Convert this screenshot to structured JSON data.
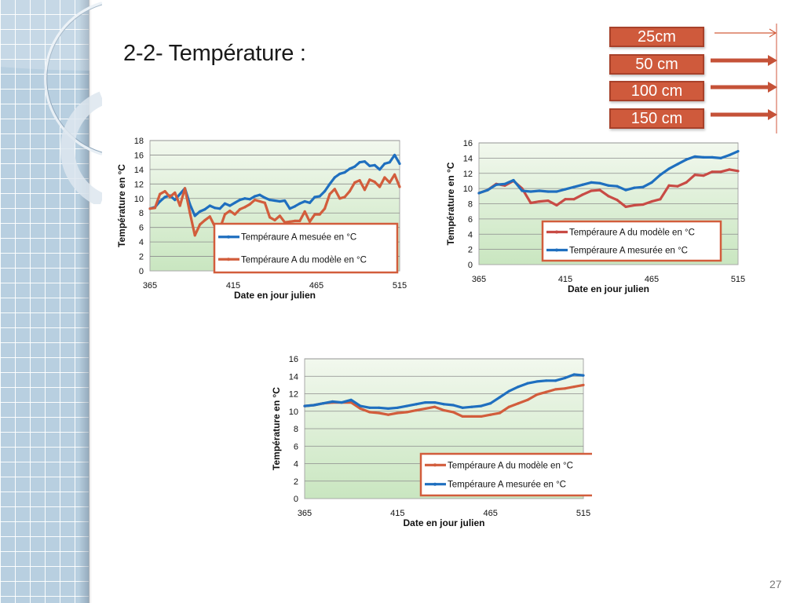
{
  "slide": {
    "title": "2-2- Température :",
    "page_number": "27",
    "accent_color": "#cf5a3c",
    "sidebar_color": "#b8cfe0"
  },
  "depth_legend": {
    "items": [
      {
        "label": "25cm",
        "arrow": "thin"
      },
      {
        "label": "50 cm",
        "arrow": "thick"
      },
      {
        "label": "100 cm",
        "arrow": "thick"
      },
      {
        "label": "150 cm",
        "arrow": "thick"
      }
    ]
  },
  "chart_data": [
    {
      "type": "line",
      "title": "",
      "xlabel": "Date en jour julien",
      "ylabel": "Température en °C",
      "xlim": [
        365,
        515
      ],
      "ylim": [
        0,
        18
      ],
      "x_ticks": [
        "365",
        "415",
        "465",
        "515"
      ],
      "y_ticks": [
        "0",
        "2",
        "4",
        "6",
        "8",
        "10",
        "12",
        "14",
        "16",
        "18"
      ],
      "grid": true,
      "legend_position": "bottom-right",
      "series": [
        {
          "name": "Tempéraure A mesuée  en °C",
          "color": "#1f6fbf",
          "x": [
            365,
            368,
            371,
            374,
            377,
            380,
            383,
            386,
            389,
            392,
            395,
            398,
            401,
            404,
            407,
            410,
            413,
            416,
            419,
            422,
            425,
            428,
            431,
            434,
            437,
            440,
            443,
            446,
            449,
            452,
            455,
            458,
            461,
            464,
            467,
            470,
            473,
            476,
            479,
            482,
            485,
            488,
            491,
            494,
            497,
            500,
            503,
            506,
            509,
            512,
            515
          ],
          "values": [
            8.6,
            8.8,
            9.6,
            10.2,
            10.4,
            9.8,
            10.6,
            11.4,
            9.2,
            7.6,
            8.2,
            8.5,
            9.0,
            8.7,
            8.6,
            9.3,
            9.0,
            9.4,
            9.8,
            10.0,
            9.9,
            10.3,
            10.5,
            10.1,
            9.8,
            9.7,
            9.6,
            9.7,
            8.6,
            8.9,
            9.3,
            9.6,
            9.4,
            10.2,
            10.3,
            11.0,
            12.0,
            12.9,
            13.4,
            13.6,
            14.1,
            14.4,
            15.0,
            15.1,
            14.5,
            14.6,
            14.0,
            14.8,
            15.0,
            16.0,
            14.8
          ]
        },
        {
          "name": "Tempéraure A du modèle  en °C",
          "color": "#d25d3c",
          "x": [
            365,
            368,
            371,
            374,
            377,
            380,
            383,
            386,
            389,
            392,
            395,
            398,
            401,
            404,
            407,
            410,
            413,
            416,
            419,
            422,
            425,
            428,
            431,
            434,
            437,
            440,
            443,
            446,
            449,
            452,
            455,
            458,
            461,
            464,
            467,
            470,
            473,
            476,
            479,
            482,
            485,
            488,
            491,
            494,
            497,
            500,
            503,
            506,
            509,
            512,
            515
          ],
          "values": [
            8.6,
            8.7,
            10.6,
            11.0,
            10.2,
            10.8,
            9.0,
            11.4,
            8.0,
            4.9,
            6.4,
            7.0,
            7.5,
            6.1,
            5.8,
            7.8,
            8.3,
            7.8,
            8.5,
            8.8,
            9.2,
            9.8,
            9.6,
            9.4,
            7.4,
            7.0,
            7.6,
            6.7,
            6.8,
            6.9,
            6.9,
            8.2,
            6.8,
            7.8,
            7.8,
            8.6,
            10.6,
            11.3,
            10.0,
            10.2,
            11.0,
            12.2,
            12.5,
            11.2,
            12.6,
            12.3,
            11.6,
            12.9,
            12.2,
            13.3,
            11.6
          ]
        }
      ]
    },
    {
      "type": "line",
      "title": "",
      "xlabel": "Date  en jour julien",
      "ylabel": "Température en °C",
      "xlim": [
        365,
        515
      ],
      "ylim": [
        0,
        16
      ],
      "x_ticks": [
        "365",
        "415",
        "465",
        "515"
      ],
      "y_ticks": [
        "0",
        "2",
        "4",
        "6",
        "8",
        "10",
        "12",
        "14",
        "16"
      ],
      "grid": true,
      "legend_position": "bottom-right",
      "series": [
        {
          "name": "Tempéraure A du modèle  en °C",
          "color": "#c84b45",
          "x": [
            365,
            370,
            375,
            380,
            385,
            390,
            395,
            400,
            405,
            410,
            415,
            420,
            425,
            430,
            435,
            440,
            445,
            450,
            455,
            460,
            465,
            470,
            475,
            480,
            485,
            490,
            495,
            500,
            505,
            510,
            515
          ],
          "values": [
            9.4,
            9.8,
            10.6,
            10.4,
            11.0,
            10.0,
            8.1,
            8.3,
            8.4,
            7.8,
            8.6,
            8.6,
            9.2,
            9.7,
            9.8,
            9.0,
            8.5,
            7.6,
            7.8,
            7.9,
            8.3,
            8.6,
            10.4,
            10.3,
            10.8,
            11.8,
            11.7,
            12.2,
            12.2,
            12.5,
            12.3
          ]
        },
        {
          "name": "Tempéraure A mesurée  en °C",
          "color": "#1f6fbf",
          "x": [
            365,
            370,
            375,
            380,
            385,
            390,
            395,
            400,
            405,
            410,
            415,
            420,
            425,
            430,
            435,
            440,
            445,
            450,
            455,
            460,
            465,
            470,
            475,
            480,
            485,
            490,
            495,
            500,
            505,
            510,
            515
          ],
          "values": [
            9.4,
            9.8,
            10.5,
            10.6,
            11.1,
            9.7,
            9.6,
            9.7,
            9.6,
            9.6,
            9.9,
            10.2,
            10.5,
            10.8,
            10.7,
            10.4,
            10.3,
            9.8,
            10.1,
            10.2,
            10.8,
            11.8,
            12.6,
            13.2,
            13.8,
            14.2,
            14.1,
            14.1,
            14.0,
            14.4,
            14.9
          ]
        }
      ]
    },
    {
      "type": "line",
      "title": "",
      "xlabel": "Date en jour julien",
      "ylabel": "Température en °C",
      "xlim": [
        365,
        515
      ],
      "ylim": [
        0,
        16
      ],
      "x_ticks": [
        "365",
        "415",
        "465",
        "515"
      ],
      "y_ticks": [
        "0",
        "2",
        "4",
        "6",
        "8",
        "10",
        "12",
        "14",
        "16"
      ],
      "grid": true,
      "legend_position": "bottom-right",
      "series": [
        {
          "name": "Tempéraure A du modèle en °C",
          "color": "#d25d3c",
          "x": [
            365,
            370,
            375,
            380,
            385,
            390,
            395,
            400,
            405,
            410,
            415,
            420,
            425,
            430,
            435,
            440,
            445,
            450,
            455,
            460,
            465,
            470,
            475,
            480,
            485,
            490,
            495,
            500,
            505,
            510,
            515
          ],
          "values": [
            10.6,
            10.7,
            10.9,
            11.0,
            11.0,
            11.0,
            10.3,
            9.9,
            9.8,
            9.6,
            9.8,
            9.9,
            10.1,
            10.3,
            10.5,
            10.1,
            9.9,
            9.4,
            9.4,
            9.4,
            9.6,
            9.8,
            10.5,
            10.9,
            11.3,
            11.9,
            12.2,
            12.5,
            12.6,
            12.8,
            13.0
          ]
        },
        {
          "name": "Tempéraure A mesurée en °C",
          "color": "#1f6fbf",
          "x": [
            365,
            370,
            375,
            380,
            385,
            390,
            395,
            400,
            405,
            410,
            415,
            420,
            425,
            430,
            435,
            440,
            445,
            450,
            455,
            460,
            465,
            470,
            475,
            480,
            485,
            490,
            495,
            500,
            505,
            510,
            515
          ],
          "values": [
            10.6,
            10.7,
            10.9,
            11.1,
            11.0,
            11.3,
            10.6,
            10.4,
            10.4,
            10.3,
            10.4,
            10.6,
            10.8,
            11.0,
            11.0,
            10.8,
            10.7,
            10.4,
            10.5,
            10.6,
            10.9,
            11.6,
            12.3,
            12.8,
            13.2,
            13.4,
            13.5,
            13.5,
            13.8,
            14.2,
            14.1
          ]
        }
      ]
    }
  ]
}
